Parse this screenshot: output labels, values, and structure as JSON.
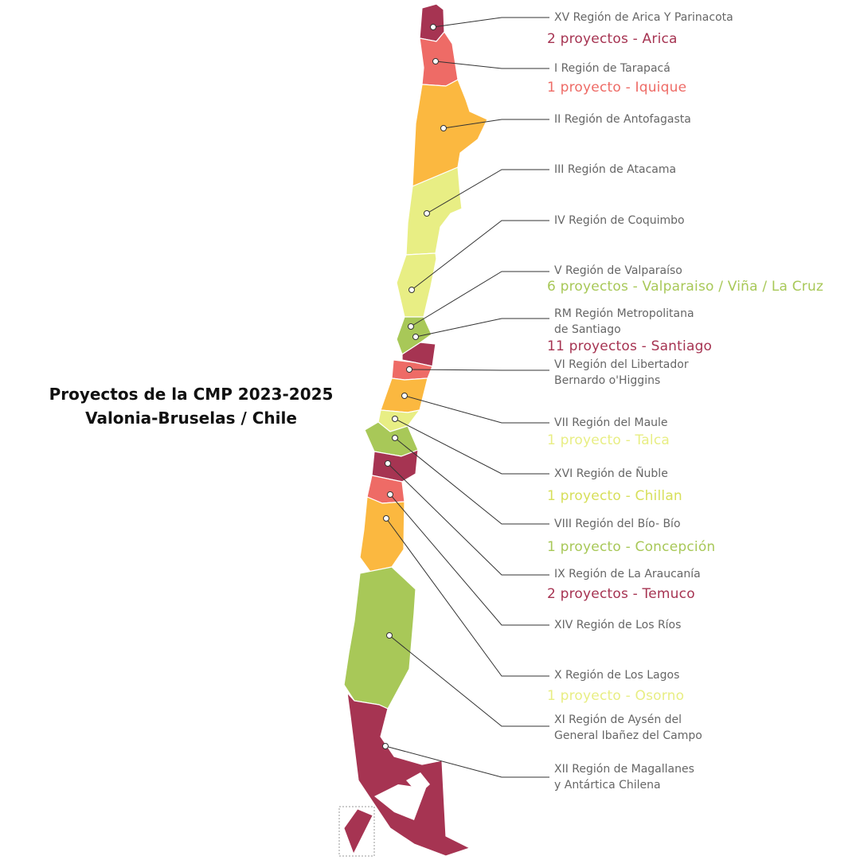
{
  "title": {
    "line1": "Proyectos de la CMP 2023-2025",
    "line2": "Valonia-Bruselas / Chile"
  },
  "colors": {
    "dark_red": "#a63452",
    "salmon": "#ee6b66",
    "orange": "#fbb840",
    "light_yellow": "#e8ee84",
    "green": "#a8c858",
    "label_gray": "#666666"
  },
  "regions": [
    {
      "name_lines": [
        "XV Región de Arica Y Parinacota"
      ],
      "projects": "2 proyectos - Arica",
      "color": "#a63452"
    },
    {
      "name_lines": [
        "I Región de Tarapacá"
      ],
      "projects": "1 proyecto - Iquique",
      "color": "#ee6b66"
    },
    {
      "name_lines": [
        "II Región de Antofagasta"
      ],
      "projects": "",
      "color": "#fbb840"
    },
    {
      "name_lines": [
        "III Región de Atacama"
      ],
      "projects": "",
      "color": "#e8ee84"
    },
    {
      "name_lines": [
        "IV Región de Coquimbo"
      ],
      "projects": "",
      "color": "#e8ee84"
    },
    {
      "name_lines": [
        "V Región de Valparaíso"
      ],
      "projects": "6 proyectos - Valparaiso / Viña / La Cruz",
      "color": "#a8c858"
    },
    {
      "name_lines": [
        "RM Región Metropolitana",
        "de Santiago"
      ],
      "projects": "11 proyectos - Santiago",
      "color": "#a63452"
    },
    {
      "name_lines": [
        "VI Región del Libertador",
        "Bernardo o'Higgins"
      ],
      "projects": "",
      "color": "#ee6b66"
    },
    {
      "name_lines": [
        "VII Región del Maule"
      ],
      "projects": "1 proyecto - Talca",
      "color": "#fbb840"
    },
    {
      "name_lines": [
        "XVI Región de Ñuble"
      ],
      "projects": "1 proyecto - Chillan",
      "color": "#e8ee84"
    },
    {
      "name_lines": [
        "VIII Región del Bío- Bío"
      ],
      "projects": "1 proyecto  - Concepción",
      "color": "#a8c858"
    },
    {
      "name_lines": [
        "IX Región de La Araucanía"
      ],
      "projects": "2 proyectos - Temuco",
      "color": "#a63452"
    },
    {
      "name_lines": [
        "XIV Región de Los Ríos"
      ],
      "projects": "",
      "color": "#ee6b66"
    },
    {
      "name_lines": [
        "X Región de Los Lagos"
      ],
      "projects": "1 proyecto - Osorno",
      "color": "#fbb840"
    },
    {
      "name_lines": [
        "XI Región de Aysén del",
        "General Ibañez del Campo"
      ],
      "projects": "",
      "color": "#a8c858"
    },
    {
      "name_lines": [
        "XII Región de Magallanes",
        "y Antártica Chilena"
      ],
      "projects": "",
      "color": "#a63452"
    }
  ]
}
